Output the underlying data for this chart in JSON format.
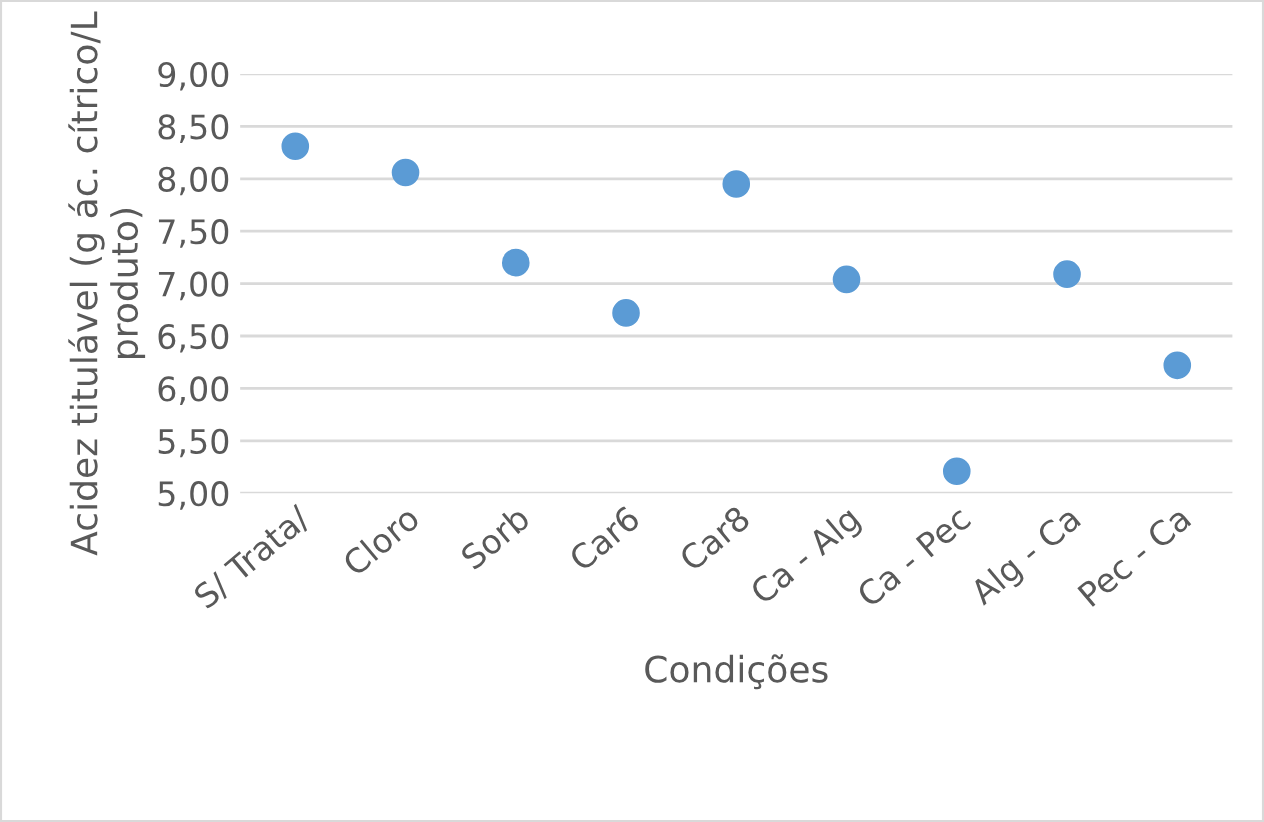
{
  "chart_data": {
    "type": "scatter",
    "xlabel": "Condições",
    "ylabel": "Acidez titulável (g ác. cítrico/L produto)",
    "categories": [
      "S/ Trata/",
      "Cloro",
      "Sorb",
      "Car6",
      "Car8",
      "Ca - Alg",
      "Ca - Pec",
      "Alg - Ca",
      "Pec - Ca"
    ],
    "series": [
      {
        "color": "#5b9bd5",
        "values": [
          8.31,
          8.06,
          7.2,
          6.72,
          7.95,
          7.04,
          5.21,
          7.09,
          6.22
        ]
      }
    ],
    "ylim": [
      5,
      9
    ],
    "yticks": [
      {
        "value": 5,
        "label": "5,00"
      },
      {
        "value": 5.5,
        "label": "5,50"
      },
      {
        "value": 6,
        "label": "6,00"
      },
      {
        "value": 6.5,
        "label": "6,50"
      },
      {
        "value": 7,
        "label": "7,00"
      },
      {
        "value": 7.5,
        "label": "7,50"
      },
      {
        "value": 8,
        "label": "8,00"
      },
      {
        "value": 8.5,
        "label": "8,50"
      },
      {
        "value": 9,
        "label": "9,00"
      }
    ],
    "grid": "y",
    "marker": "circle",
    "legend": false
  }
}
